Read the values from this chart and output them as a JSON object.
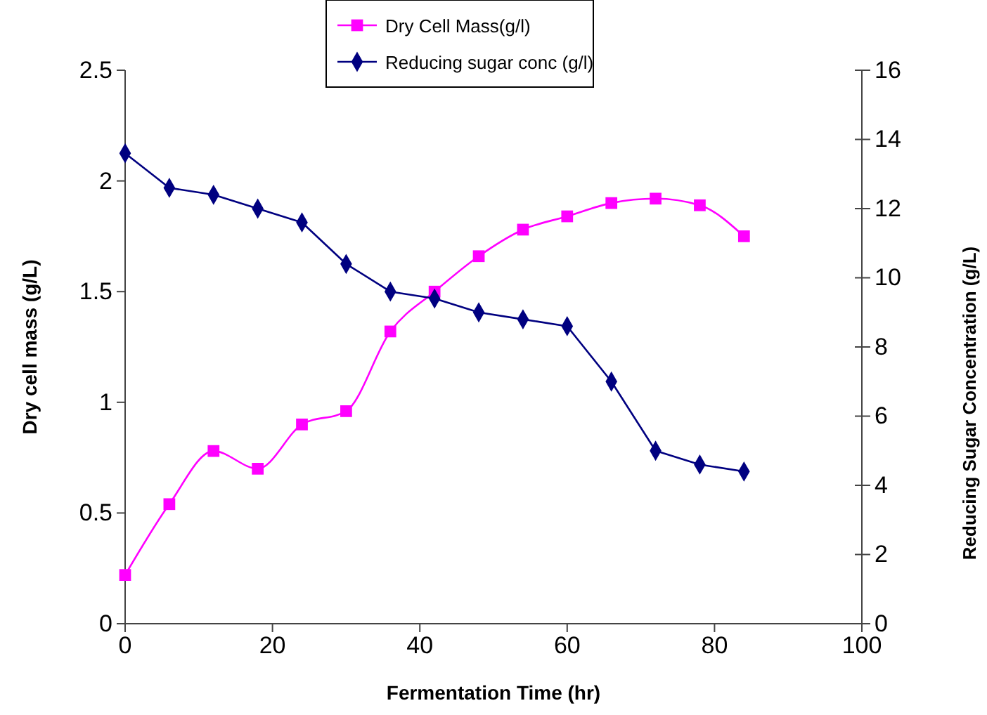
{
  "chart_data": {
    "type": "line",
    "xlabel": "Fermentation Time (hr)",
    "ylabel": "Dry cell mass (g/L)",
    "y2label": "Reducing Sugar Concentration (g/L)",
    "x": [
      0,
      6,
      12,
      18,
      24,
      30,
      36,
      42,
      48,
      54,
      60,
      66,
      72,
      78,
      84
    ],
    "series": [
      {
        "name": "Dry Cell Mass(g/l)",
        "color": "#ff00ff",
        "marker": "square",
        "values": [
          0.22,
          0.54,
          0.78,
          0.7,
          0.9,
          0.96,
          1.32,
          1.5,
          1.66,
          1.78,
          1.84,
          1.9,
          1.92,
          1.89,
          1.75
        ]
      },
      {
        "name": "Reducing sugar conc (g/l)",
        "color": "#000080",
        "marker": "diamond",
        "axis": "y2",
        "values": [
          13.6,
          12.6,
          12.4,
          12.0,
          11.6,
          10.4,
          9.6,
          9.4,
          9.0,
          8.8,
          8.6,
          7.0,
          5.0,
          4.6,
          4.4
        ]
      }
    ],
    "xlim": [
      0,
      100
    ],
    "xticks": [
      0,
      20,
      40,
      60,
      80,
      100
    ],
    "ylim": [
      0,
      2.5
    ],
    "yticks": [
      0,
      0.5,
      1,
      1.5,
      2,
      2.5
    ],
    "y2lim": [
      0,
      16
    ],
    "y2ticks": [
      0,
      2,
      4,
      6,
      8,
      10,
      12,
      14,
      16
    ],
    "legend": "top",
    "grid": false
  }
}
